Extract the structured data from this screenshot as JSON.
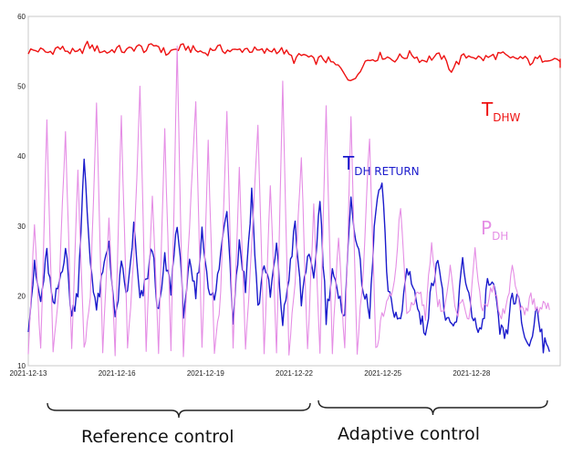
{
  "chart_data": {
    "type": "line",
    "x_ticks": [
      "2021-12-13",
      "2021-12-16",
      "2021-12-19",
      "2021-12-22",
      "2021-12-25",
      "2021-12-28"
    ],
    "x_range": [
      "2021-12-13",
      "2021-12-31"
    ],
    "ylim": [
      10,
      60
    ],
    "y_ticks": [
      10,
      20,
      30,
      40,
      50,
      60
    ],
    "grid": true,
    "series": [
      {
        "name": "T_DHW",
        "label_main": "T",
        "label_sub": "DHW",
        "color": "#ee1111",
        "values": [
          55.0,
          55.2,
          54.8,
          55.5,
          55.1,
          54.6,
          55.9,
          55.3,
          54.9,
          55.4,
          55.0,
          55.7,
          55.2,
          56.0,
          54.7,
          55.3,
          55.6,
          55.1,
          54.8,
          55.5,
          55.2,
          55.0,
          55.4,
          55.1,
          54.9,
          55.3,
          55.0,
          53.8,
          54.5,
          53.6,
          54.0,
          53.2,
          52.3,
          50.5,
          53.4,
          54.0,
          54.4,
          53.9,
          54.2,
          54.6,
          53.7,
          54.1,
          54.3,
          52.4,
          54.0,
          54.5,
          53.9,
          54.2,
          54.6,
          53.8,
          54.1,
          53.5,
          53.9,
          54.2,
          53.7,
          53.0,
          53.5
        ],
        "x_start": "2021-12-13",
        "x_step_days": 0.333
      },
      {
        "name": "T_DH RETURN",
        "label_main": "T",
        "label_sub": "DH RETURN",
        "color": "#1a1acc",
        "values": [
          16,
          24,
          19,
          26,
          18,
          22,
          27,
          17,
          21,
          39,
          25,
          18,
          23,
          28,
          16,
          24,
          20,
          30,
          19,
          22,
          27,
          17,
          25,
          21,
          31,
          18,
          24,
          20,
          29,
          22,
          19,
          26,
          33,
          17,
          28,
          21,
          35,
          18,
          25,
          20,
          27,
          16,
          23,
          30,
          19,
          26,
          22,
          34,
          17,
          24,
          19,
          18,
          34,
          27,
          21,
          17,
          33,
          36,
          20,
          18,
          16,
          24,
          22,
          17,
          15,
          21,
          26,
          18,
          15,
          16,
          25,
          20,
          16,
          14,
          22,
          21,
          15,
          14,
          20,
          19,
          14,
          13,
          19,
          13,
          12
        ],
        "x_start": "2021-12-13",
        "x_step_days": 0.21
      },
      {
        "name": "P_DH",
        "label_main": "P",
        "label_sub": "DH",
        "color": "#e58ee5",
        "values": [
          12,
          30,
          12,
          45,
          12,
          22,
          44,
          12,
          38,
          12,
          20,
          48,
          12,
          31,
          12,
          46,
          12,
          25,
          50,
          12,
          35,
          12,
          44,
          12,
          55,
          12,
          30,
          48,
          12,
          42,
          12,
          20,
          46,
          12,
          38,
          12,
          27,
          44,
          12,
          36,
          12,
          50,
          12,
          22,
          40,
          12,
          33,
          12,
          47,
          12,
          29,
          12,
          45,
          12,
          24,
          43,
          12,
          17,
          19,
          22,
          33,
          18,
          19,
          21,
          17,
          28,
          19,
          18,
          24,
          17,
          20,
          16,
          27,
          18,
          19,
          22,
          17,
          18,
          24,
          19,
          17,
          20,
          18,
          19,
          18
        ],
        "x_start": "2021-12-13",
        "x_step_days": 0.21
      }
    ]
  },
  "annotations": {
    "reference_control": "Reference control",
    "adaptive_control": "Adaptive control"
  }
}
